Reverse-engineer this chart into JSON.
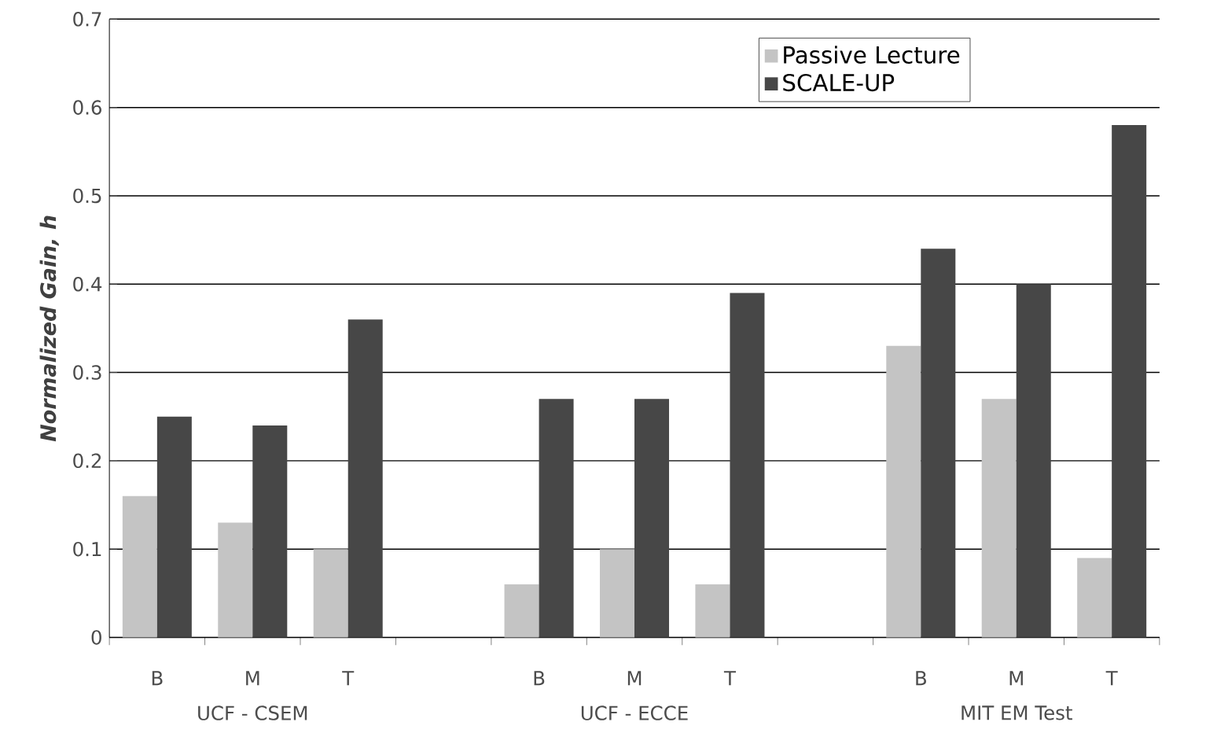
{
  "chart_data": {
    "type": "bar",
    "ylabel": "Normalized Gain, h",
    "categories": [
      "B",
      "M",
      "T",
      null,
      "B",
      "M",
      "T",
      null,
      "B",
      "M",
      "T"
    ],
    "series": [
      {
        "name": "Passive Lecture",
        "color": "#c4c4c4",
        "values": [
          0.16,
          0.13,
          0.1,
          null,
          0.06,
          0.1,
          0.06,
          null,
          0.33,
          0.27,
          0.09
        ]
      },
      {
        "name": "SCALE-UP",
        "color": "#474747",
        "values": [
          0.25,
          0.24,
          0.36,
          null,
          0.27,
          0.27,
          0.39,
          null,
          0.44,
          0.4,
          0.58
        ]
      }
    ],
    "annotations": [
      "UCF - CSEM",
      "UCF - ECCE",
      "MIT EM Test"
    ],
    "ylim": [
      0,
      0.7
    ],
    "yticks": [
      0,
      0.1,
      0.2,
      0.3,
      0.4,
      0.5,
      0.6,
      0.7
    ],
    "grid": "y",
    "legend": "top right"
  }
}
